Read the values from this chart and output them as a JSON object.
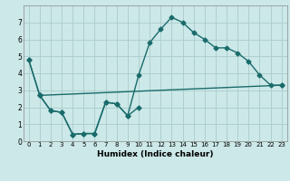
{
  "xlabel": "Humidex (Indice chaleur)",
  "xlim": [
    -0.5,
    23.5
  ],
  "ylim": [
    0,
    8
  ],
  "xticks": [
    0,
    1,
    2,
    3,
    4,
    5,
    6,
    7,
    8,
    9,
    10,
    11,
    12,
    13,
    14,
    15,
    16,
    17,
    18,
    19,
    20,
    21,
    22,
    23
  ],
  "yticks": [
    0,
    1,
    2,
    3,
    4,
    5,
    6,
    7
  ],
  "bg_color": "#cce8e8",
  "grid_color": "#aacccc",
  "line_color": "#1a6b6b",
  "line_main_x": [
    0,
    1,
    2,
    3,
    4,
    5,
    6,
    7,
    8,
    9,
    10,
    11,
    12,
    13,
    14,
    15,
    16,
    17,
    18,
    19,
    20,
    21,
    22,
    23
  ],
  "line_main_y": [
    4.8,
    2.7,
    1.8,
    1.7,
    0.4,
    0.45,
    0.45,
    2.3,
    2.2,
    1.5,
    3.9,
    5.8,
    6.6,
    7.3,
    7.0,
    6.4,
    6.0,
    5.5,
    5.5,
    5.2,
    4.7,
    3.9,
    3.3,
    3.3
  ],
  "line_low_x": [
    0,
    1,
    2,
    3,
    4,
    5,
    6,
    7,
    8,
    9,
    10
  ],
  "line_low_y": [
    4.8,
    2.7,
    1.8,
    1.7,
    0.4,
    0.45,
    0.45,
    2.3,
    2.2,
    1.5,
    2.0
  ],
  "line_trend_x": [
    1,
    23
  ],
  "line_trend_y": [
    2.7,
    3.3
  ],
  "markersize": 2.5,
  "linewidth": 1.0
}
